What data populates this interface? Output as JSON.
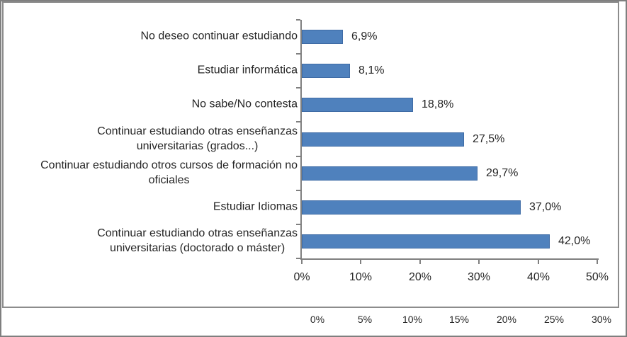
{
  "chart_data": {
    "type": "bar",
    "orientation": "horizontal",
    "title": "",
    "categories": [
      "No deseo continuar estudiando",
      "Estudiar informática",
      "No sabe/No contesta",
      "Continuar estudiando otras enseñanzas\nuniversitarias (grados...)",
      "Continuar estudiando otros cursos de formación no\noficiales",
      "Estudiar Idiomas",
      "Continuar estudiando otras enseñanzas\nuniversitarias (doctorado o máster)"
    ],
    "values": [
      6.9,
      8.1,
      18.8,
      27.5,
      29.7,
      37.0,
      42.0
    ],
    "value_labels": [
      "6,9%",
      "8,1%",
      "18,8%",
      "27,5%",
      "29,7%",
      "37,0%",
      "42,0%"
    ],
    "xlim": [
      0,
      50
    ],
    "x_tick_step": 10,
    "x_ticks": [
      "0%",
      "10%",
      "20%",
      "30%",
      "40%",
      "50%"
    ],
    "grid": false,
    "legend": false,
    "bar_color": "#4f81bd",
    "bar_border_color": "#3f6ca6"
  },
  "secondary_axis": {
    "ticks": [
      "0%",
      "5%",
      "10%",
      "15%",
      "20%",
      "25%",
      "30%"
    ]
  },
  "colors": {
    "axis_line": "#808080",
    "frame_border": "#8c8c8c",
    "outer_border": "#7f7f7f",
    "text": "#262626",
    "background": "#ffffff"
  }
}
